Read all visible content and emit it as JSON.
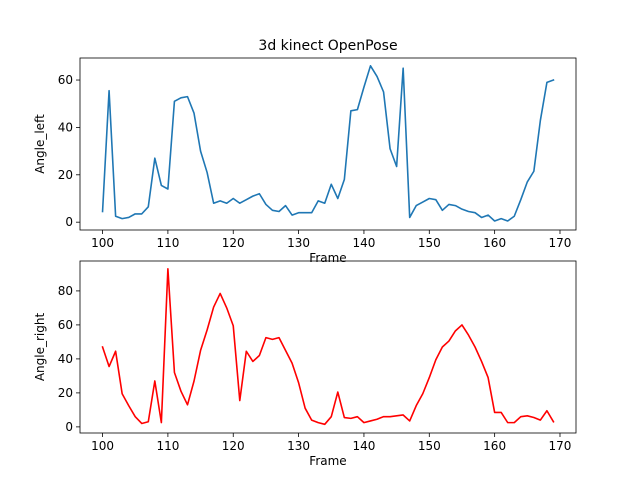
{
  "chart_data": [
    {
      "type": "line",
      "title": "3d kinect OpenPose",
      "xlabel": "Frame",
      "ylabel": "Angle_left",
      "xlim": [
        96.55,
        172.45
      ],
      "ylim": [
        -3.3,
        69.3
      ],
      "xticks": [
        100,
        110,
        120,
        130,
        140,
        150,
        160,
        170
      ],
      "yticks": [
        0,
        20,
        40,
        60
      ],
      "grid": false,
      "series": [
        {
          "color": "#1f77b4",
          "x": [
            100,
            101,
            102,
            103,
            104,
            105,
            106,
            107,
            108,
            109,
            110,
            111,
            112,
            113,
            114,
            115,
            116,
            117,
            118,
            119,
            120,
            121,
            122,
            123,
            124,
            125,
            126,
            127,
            128,
            129,
            130,
            131,
            132,
            133,
            134,
            135,
            136,
            137,
            138,
            139,
            140,
            141,
            142,
            143,
            144,
            145,
            146,
            147,
            148,
            149,
            150,
            151,
            152,
            153,
            154,
            155,
            156,
            157,
            158,
            159,
            160,
            161,
            162,
            163,
            164,
            165,
            166,
            167,
            168,
            169
          ],
          "values": [
            4.5,
            55.5,
            2.5,
            1.5,
            2,
            3.5,
            3.5,
            6.5,
            27,
            15.5,
            14,
            51,
            52.5,
            53,
            46,
            30,
            21,
            8,
            9,
            8,
            10,
            8,
            9.5,
            11,
            12,
            7.5,
            5,
            4.5,
            7,
            3,
            4,
            4,
            4,
            9,
            8,
            16,
            10,
            18,
            47,
            47.5,
            57,
            66,
            61.5,
            55,
            31,
            23.5,
            65,
            2,
            7,
            8.5,
            10,
            9.5,
            5,
            7.5,
            7,
            5.5,
            4.5,
            4,
            2,
            3,
            0.5,
            1.5,
            0.5,
            2.5,
            9.5,
            17,
            21.5,
            43,
            59,
            60
          ]
        }
      ]
    },
    {
      "type": "line",
      "title": "",
      "xlabel": "Frame",
      "ylabel": "Angle_right",
      "xlim": [
        96.55,
        172.45
      ],
      "ylim": [
        -3.6,
        97.6
      ],
      "xticks": [
        100,
        110,
        120,
        130,
        140,
        150,
        160,
        170
      ],
      "yticks": [
        0,
        20,
        40,
        60,
        80
      ],
      "grid": false,
      "series": [
        {
          "color": "#ff0000",
          "x": [
            100,
            101,
            102,
            103,
            104,
            105,
            106,
            107,
            108,
            109,
            110,
            111,
            112,
            113,
            114,
            115,
            116,
            117,
            118,
            119,
            120,
            121,
            122,
            123,
            124,
            125,
            126,
            127,
            128,
            129,
            130,
            131,
            132,
            133,
            134,
            135,
            136,
            137,
            138,
            139,
            140,
            141,
            142,
            143,
            144,
            145,
            146,
            147,
            148,
            149,
            150,
            151,
            152,
            153,
            154,
            155,
            156,
            157,
            158,
            159,
            160,
            161,
            162,
            163,
            164,
            165,
            166,
            167,
            168,
            169
          ],
          "values": [
            47,
            35.5,
            44.5,
            19.5,
            12.5,
            6,
            2,
            3,
            27,
            2.5,
            93,
            32,
            21,
            13,
            27,
            45,
            57,
            70.5,
            78.5,
            70,
            59.5,
            15.5,
            44.5,
            38.5,
            42,
            52.5,
            51.5,
            52.5,
            45,
            37.5,
            26,
            11,
            4,
            2.5,
            1.5,
            6,
            20.5,
            5.5,
            5,
            6,
            2.5,
            3.5,
            4.5,
            6,
            6,
            6.5,
            7,
            3.5,
            12.5,
            19.5,
            29,
            39.5,
            47,
            50.5,
            56.5,
            60,
            54,
            47,
            38.5,
            29,
            8.5,
            8.5,
            2.5,
            2.5,
            6,
            6.5,
            5.5,
            4,
            9.5,
            3
          ]
        }
      ]
    }
  ]
}
